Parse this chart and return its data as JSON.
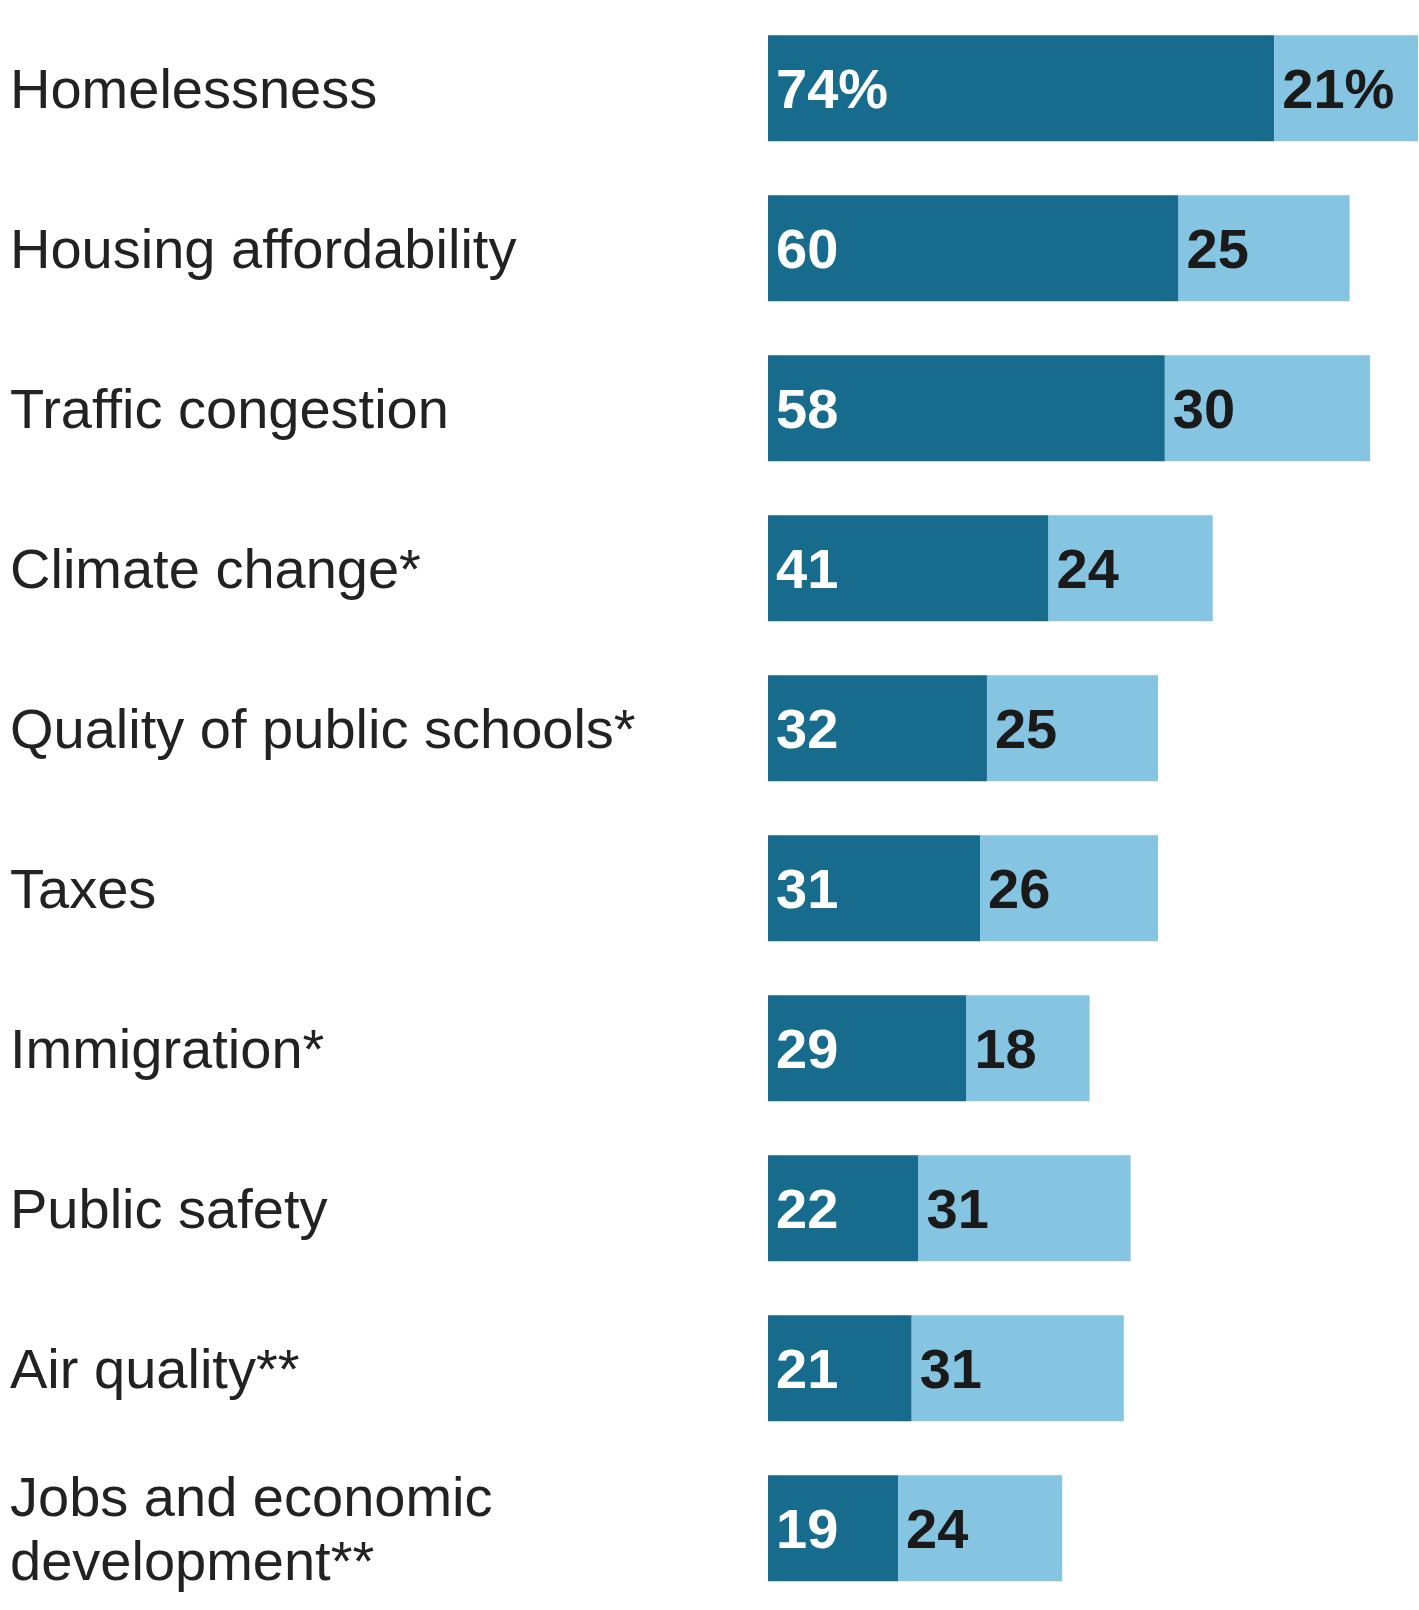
{
  "chart_data": {
    "type": "bar",
    "orientation": "horizontal",
    "stacked": true,
    "legend": false,
    "grid": false,
    "tick_labels": "y",
    "categories": [
      "Homelessness",
      "Housing affordability",
      "Traffic congestion",
      "Climate change*",
      "Quality of public schools*",
      "Taxes",
      "Immigration*",
      "Public safety",
      "Air quality**",
      "Jobs and economic development**"
    ],
    "series": [
      {
        "color": "#176b8c",
        "values": [
          74,
          60,
          58,
          41,
          32,
          31,
          29,
          22,
          21,
          19
        ],
        "value_labels": [
          "74%",
          "60",
          "58",
          "41",
          "32",
          "31",
          "29",
          "22",
          "21",
          "19"
        ]
      },
      {
        "color": "#86c5e1",
        "values": [
          21,
          25,
          30,
          24,
          25,
          26,
          18,
          31,
          31,
          24
        ],
        "value_labels": [
          "21%",
          "25",
          "30",
          "24",
          "25",
          "26",
          "18",
          "31",
          "31",
          "24"
        ]
      }
    ]
  }
}
